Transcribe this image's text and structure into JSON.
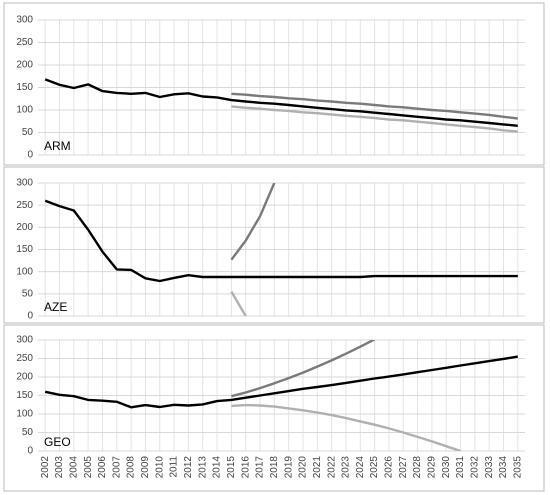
{
  "chart_data": [
    {
      "type": "line",
      "label": "ARM",
      "x": [
        2002,
        2003,
        2004,
        2005,
        2006,
        2007,
        2008,
        2009,
        2010,
        2011,
        2012,
        2013,
        2014,
        2015,
        2016,
        2017,
        2018,
        2019,
        2020,
        2021,
        2022,
        2023,
        2024,
        2025,
        2026,
        2027,
        2028,
        2029,
        2030,
        2031,
        2032,
        2033,
        2034,
        2035
      ],
      "ylim": [
        0,
        300
      ],
      "yticks": [
        0,
        50,
        100,
        150,
        200,
        250,
        300
      ],
      "grid": true,
      "series": [
        {
          "color": "#7a7a7a",
          "values": [
            null,
            null,
            null,
            null,
            null,
            null,
            null,
            null,
            null,
            null,
            null,
            null,
            null,
            136,
            134,
            131,
            129,
            126,
            124,
            121,
            119,
            116,
            114,
            111,
            108,
            106,
            103,
            100,
            98,
            95,
            92,
            89,
            85,
            81
          ]
        },
        {
          "color": "#b0b0b0",
          "values": [
            null,
            null,
            null,
            null,
            null,
            null,
            null,
            null,
            null,
            null,
            null,
            null,
            null,
            108,
            105,
            103,
            100,
            98,
            95,
            93,
            90,
            87,
            85,
            82,
            79,
            77,
            74,
            71,
            68,
            65,
            62,
            59,
            55,
            52
          ]
        },
        {
          "color": "#000000",
          "values": [
            168,
            156,
            149,
            157,
            142,
            138,
            136,
            138,
            129,
            135,
            137,
            130,
            128,
            122,
            119,
            116,
            114,
            111,
            108,
            105,
            102,
            99,
            97,
            94,
            91,
            88,
            85,
            82,
            79,
            77,
            74,
            71,
            68,
            65
          ]
        }
      ]
    },
    {
      "type": "line",
      "label": "AZE",
      "x": [
        2002,
        2003,
        2004,
        2005,
        2006,
        2007,
        2008,
        2009,
        2010,
        2011,
        2012,
        2013,
        2014,
        2015,
        2016,
        2017,
        2018,
        2019,
        2020,
        2021,
        2022,
        2023,
        2024,
        2025,
        2026,
        2027,
        2028,
        2029,
        2030,
        2031,
        2032,
        2033,
        2034,
        2035
      ],
      "ylim": [
        0,
        300
      ],
      "yticks": [
        0,
        50,
        100,
        150,
        200,
        250,
        300
      ],
      "grid": true,
      "series": [
        {
          "color": "#7a7a7a",
          "values": [
            null,
            null,
            null,
            null,
            null,
            null,
            null,
            null,
            null,
            null,
            null,
            null,
            null,
            127,
            170,
            225,
            300,
            null,
            null,
            null,
            null,
            null,
            null,
            null,
            null,
            null,
            null,
            null,
            null,
            null,
            null,
            null,
            null,
            null
          ]
        },
        {
          "color": "#b0b0b0",
          "values": [
            null,
            null,
            null,
            null,
            null,
            null,
            null,
            null,
            null,
            null,
            null,
            null,
            null,
            55,
            0,
            null,
            null,
            null,
            null,
            null,
            null,
            null,
            null,
            null,
            null,
            null,
            null,
            null,
            null,
            null,
            null,
            null,
            null,
            null
          ]
        },
        {
          "color": "#000000",
          "values": [
            260,
            248,
            238,
            195,
            145,
            105,
            104,
            85,
            79,
            86,
            92,
            88,
            88,
            88,
            88,
            88,
            88,
            88,
            88,
            88,
            88,
            88,
            88,
            90,
            90,
            90,
            90,
            90,
            90,
            90,
            90,
            90,
            90,
            90
          ]
        }
      ]
    },
    {
      "type": "line",
      "label": "GEO",
      "x": [
        2002,
        2003,
        2004,
        2005,
        2006,
        2007,
        2008,
        2009,
        2010,
        2011,
        2012,
        2013,
        2014,
        2015,
        2016,
        2017,
        2018,
        2019,
        2020,
        2021,
        2022,
        2023,
        2024,
        2025,
        2026,
        2027,
        2028,
        2029,
        2030,
        2031,
        2032,
        2033,
        2034,
        2035
      ],
      "ylim": [
        0,
        300
      ],
      "yticks": [
        0,
        50,
        100,
        150,
        200,
        250,
        300
      ],
      "grid": true,
      "series": [
        {
          "color": "#7a7a7a",
          "values": [
            null,
            null,
            null,
            null,
            null,
            null,
            null,
            null,
            null,
            null,
            null,
            null,
            null,
            148,
            158,
            170,
            183,
            197,
            212,
            228,
            245,
            263,
            282,
            302,
            null,
            null,
            null,
            null,
            null,
            null,
            null,
            null,
            null,
            null
          ]
        },
        {
          "color": "#b0b0b0",
          "values": [
            null,
            null,
            null,
            null,
            null,
            null,
            null,
            null,
            null,
            null,
            null,
            null,
            null,
            122,
            124,
            123,
            120,
            115,
            110,
            104,
            97,
            89,
            80,
            71,
            61,
            50,
            38,
            26,
            13,
            0,
            null,
            null,
            null,
            null
          ]
        },
        {
          "color": "#000000",
          "values": [
            160,
            152,
            148,
            138,
            136,
            133,
            118,
            124,
            119,
            125,
            123,
            126,
            135,
            138,
            144,
            150,
            156,
            162,
            168,
            173,
            178,
            184,
            190,
            196,
            201,
            207,
            213,
            219,
            225,
            231,
            237,
            243,
            249,
            255
          ]
        }
      ]
    }
  ]
}
